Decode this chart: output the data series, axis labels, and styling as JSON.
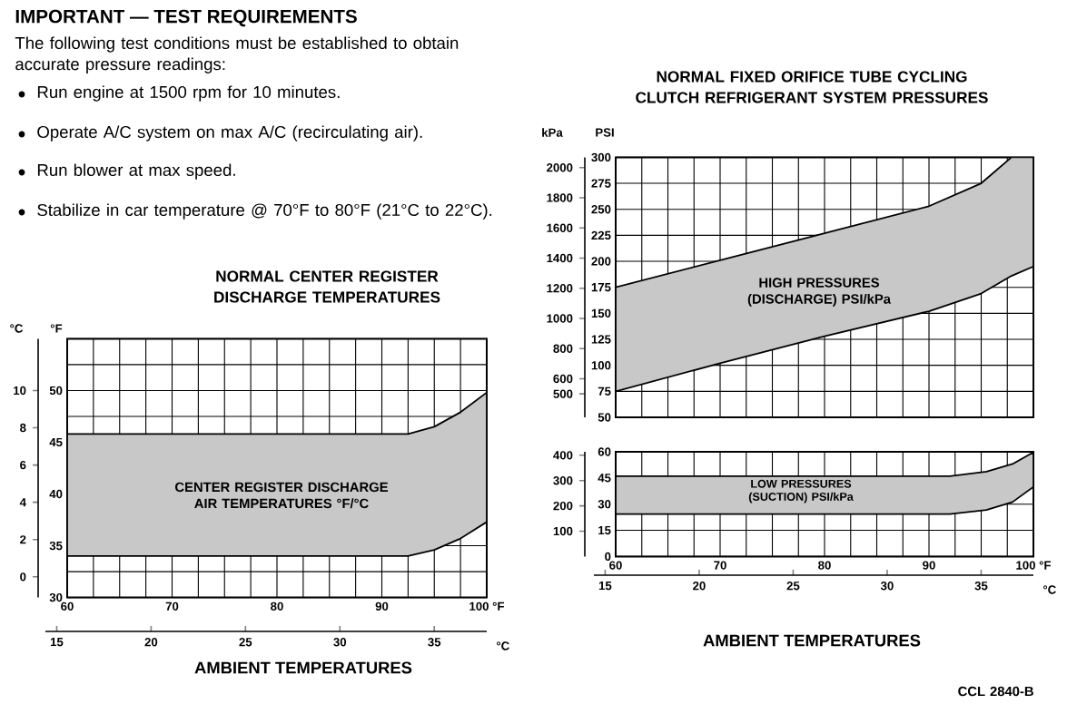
{
  "chart_data": [
    {
      "type": "other",
      "title": "IMPORTANT — TEST REQUIREMENTS",
      "annotations": [
        "The following test conditions must be established to obtain accurate pressure readings:",
        "Run engine at 1500 rpm for 10 minutes.",
        "Operate A/C system on max A/C (recirculating air).",
        "Run blower at max speed.",
        "Stabilize in car temperature @ 70°F to 80°F (21°C to 22°C)."
      ]
    },
    {
      "type": "line",
      "title": "NORMAL CENTER REGISTER DISCHARGE TEMPERATURES",
      "xlabel": "AMBIENT TEMPERATURES",
      "x2label": "°C",
      "ylabel": "°F",
      "y2label": "°C",
      "grid": true,
      "x": [
        60,
        92.5,
        95,
        97.5,
        100
      ],
      "series": [
        {
          "color": "#c8c8c8",
          "values": [
            null,
            null,
            null,
            null,
            null
          ],
          "lower": [
            34,
            34,
            34.6,
            35.7,
            37.3
          ],
          "upper": [
            45.8,
            45.8,
            46.5,
            47.9,
            49.8
          ]
        }
      ],
      "xlim": [
        60,
        100
      ],
      "xticks": [
        60,
        {
          "value": 62.5,
          "label": null
        },
        {
          "value": 65,
          "label": null
        },
        {
          "value": 67.5,
          "label": null
        },
        70,
        {
          "value": 72.5,
          "label": null
        },
        {
          "value": 75,
          "label": null
        },
        {
          "value": 77.5,
          "label": null
        },
        80,
        {
          "value": 82.5,
          "label": null
        },
        {
          "value": 85,
          "label": null
        },
        {
          "value": 87.5,
          "label": null
        },
        90,
        {
          "value": 92.5,
          "label": null
        },
        {
          "value": 95,
          "label": null
        },
        {
          "value": 97.5,
          "label": null
        },
        {
          "value": 100,
          "label": "100 °F"
        }
      ],
      "x2lim": [
        14.4,
        37.78
      ],
      "x2ticks": [
        15,
        20,
        25,
        30,
        35
      ],
      "ylim": [
        30,
        55
      ],
      "yticks": [
        30,
        {
          "value": 32.5,
          "label": null
        },
        35,
        {
          "value": 37.5,
          "label": null
        },
        40,
        {
          "value": 42.5,
          "label": null
        },
        45,
        {
          "value": 47.5,
          "label": null
        },
        50,
        {
          "value": 52.5,
          "label": null
        },
        {
          "value": 55,
          "label": null
        }
      ],
      "y2lim": [
        -1.11,
        12.78
      ],
      "y2ticks": [
        0,
        2,
        4,
        6,
        8,
        10
      ],
      "annotations": [
        "CENTER REGISTER DISCHARGE AIR TEMPERATURES °F/°C"
      ]
    },
    {
      "type": "line",
      "title": "NORMAL FIXED ORIFICE TUBE CYCLING CLUTCH REFRIGERANT SYSTEM PRESSURES",
      "ylabel": "PSI",
      "y2label": "kPa",
      "grid": true,
      "tick_labels": "y",
      "x": [
        60,
        70,
        80,
        90,
        95,
        97.9,
        100
      ],
      "series": [
        {
          "color": "#c8c8c8",
          "values": [
            null,
            null,
            null,
            null,
            null,
            null,
            null
          ],
          "lower": [
            75,
            102,
            128,
            152,
            169,
            186,
            195
          ],
          "upper": [
            175,
            201,
            227,
            253,
            275,
            300,
            300
          ]
        }
      ],
      "xlim": [
        60,
        100
      ],
      "xticks": [
        60,
        62.5,
        65,
        67.5,
        70,
        72.5,
        75,
        77.5,
        80,
        82.5,
        85,
        87.5,
        90,
        92.5,
        95,
        97.5,
        100
      ],
      "ylim": [
        50,
        300
      ],
      "yticks": [
        50,
        75,
        100,
        125,
        150,
        175,
        200,
        225,
        250,
        275,
        300
      ],
      "y2lim": [
        344.7,
        2068.4
      ],
      "y2ticks": [
        500,
        600,
        800,
        1000,
        1200,
        1400,
        1600,
        1800,
        2000
      ],
      "annotations": [
        "HIGH PRESSURES (DISCHARGE) PSI/kPa"
      ]
    },
    {
      "type": "line",
      "xlabel": "AMBIENT TEMPERATURES",
      "x2label": "°C",
      "grid": true,
      "x": [
        60,
        92,
        95.5,
        98,
        100
      ],
      "series": [
        {
          "color": "#c8c8c8",
          "values": [
            null,
            null,
            null,
            null,
            null
          ],
          "lower": [
            24.3,
            24.3,
            26.7,
            31.2,
            39.9
          ],
          "upper": [
            46,
            46,
            48.6,
            53,
            59.7
          ]
        }
      ],
      "xlim": [
        60,
        100
      ],
      "xticks": [
        60,
        {
          "value": 62.5,
          "label": null
        },
        {
          "value": 65,
          "label": null
        },
        {
          "value": 67.5,
          "label": null
        },
        70,
        {
          "value": 72.5,
          "label": null
        },
        {
          "value": 75,
          "label": null
        },
        {
          "value": 77.5,
          "label": null
        },
        80,
        {
          "value": 82.5,
          "label": null
        },
        {
          "value": 85,
          "label": null
        },
        {
          "value": 87.5,
          "label": null
        },
        90,
        {
          "value": 92.5,
          "label": null
        },
        {
          "value": 95,
          "label": null
        },
        {
          "value": 97.5,
          "label": null
        },
        {
          "value": 100,
          "label": "100 °F"
        }
      ],
      "x2lim": [
        14.4,
        37.78
      ],
      "x2ticks": [
        15,
        20,
        25,
        30,
        35
      ],
      "ylim": [
        0,
        60
      ],
      "yticks": [
        0,
        15,
        30,
        45,
        60
      ],
      "y2lim": [
        0,
        413.7
      ],
      "y2ticks": [
        100,
        200,
        300,
        400
      ],
      "annotations": [
        "LOW PRESSURES (SUCTION) PSI/kPa",
        "CCL 2840-B"
      ]
    }
  ]
}
